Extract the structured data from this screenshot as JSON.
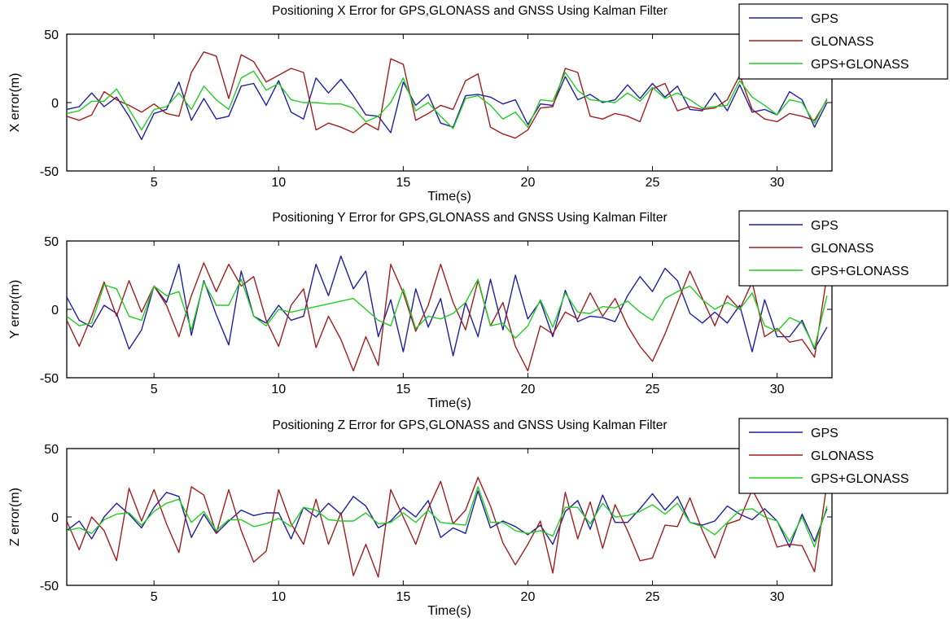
{
  "chart_data": [
    {
      "type": "line",
      "title": "Positioning X Error for GPS,GLONASS and GNSS Using Kalman Filter",
      "xlabel": "Time(s)",
      "ylabel": "X error(m)",
      "xlim": [
        1.5,
        32.2
      ],
      "ylim": [
        -50,
        50
      ],
      "xticks": [
        5,
        10,
        15,
        20,
        25,
        30
      ],
      "yticks": [
        -50,
        0,
        50
      ],
      "grid": false,
      "legend_position": "top-right",
      "x": [
        1.5,
        2,
        2.5,
        3,
        3.5,
        4,
        4.5,
        5,
        5.5,
        6,
        6.5,
        7,
        7.5,
        8,
        8.5,
        9,
        9.5,
        10,
        10.5,
        11,
        11.5,
        12,
        12.5,
        13,
        13.5,
        14,
        14.5,
        15,
        15.5,
        16,
        16.5,
        17,
        17.5,
        18,
        18.5,
        19,
        19.5,
        20,
        20.5,
        21,
        21.5,
        22,
        22.5,
        23,
        23.5,
        24,
        24.5,
        25,
        25.5,
        26,
        26.5,
        27,
        27.5,
        28,
        28.5,
        29,
        29.5,
        30,
        30.5,
        31,
        31.5,
        32
      ],
      "series": [
        {
          "name": "GPS",
          "color": "#1f1fa0",
          "values": [
            -5,
            -3,
            7,
            -3,
            4,
            -10,
            -27,
            -8,
            -5,
            15,
            -13,
            3,
            -12,
            -10,
            12,
            14,
            -2,
            16,
            -7,
            -12,
            18,
            7,
            17,
            5,
            -9,
            -10,
            -22,
            15,
            -2,
            6,
            -15,
            -18,
            5,
            6,
            4,
            -1,
            2,
            -16,
            -1,
            -2,
            19,
            2,
            6,
            0,
            2,
            13,
            3,
            14,
            4,
            12,
            -5,
            -6,
            7,
            -6,
            13,
            -7,
            -5,
            -9,
            8,
            2,
            -18,
            0
          ]
        },
        {
          "name": "GLONASS",
          "color": "#a01e1e",
          "values": [
            -10,
            -13,
            -9,
            8,
            2,
            -2,
            -7,
            -1,
            -8,
            -10,
            22,
            37,
            34,
            3,
            35,
            30,
            15,
            20,
            25,
            22,
            -20,
            -15,
            -18,
            -22,
            -15,
            -20,
            32,
            28,
            -13,
            -8,
            -2,
            -5,
            16,
            21,
            -18,
            -23,
            -26,
            -20,
            -4,
            -3,
            25,
            22,
            -10,
            -12,
            -8,
            -10,
            -14,
            10,
            14,
            -6,
            -3,
            -5,
            -4,
            2,
            20,
            -5,
            -12,
            -14,
            -8,
            -10,
            -13,
            2
          ]
        },
        {
          "name": "GPS+GLONASS",
          "color": "#22cc22",
          "values": [
            -8,
            -6,
            1,
            1,
            10,
            -5,
            -20,
            -5,
            -3,
            7,
            -5,
            12,
            2,
            -5,
            18,
            23,
            9,
            14,
            2,
            0,
            0,
            -1,
            -1,
            -4,
            -14,
            -10,
            0,
            18,
            -6,
            0,
            -10,
            -19,
            3,
            5,
            -2,
            -12,
            -7,
            -18,
            2,
            1,
            22,
            9,
            2,
            1,
            0,
            7,
            1,
            11,
            3,
            7,
            2,
            -4,
            -3,
            -2,
            16,
            4,
            -2,
            -9,
            2,
            0,
            -15,
            3
          ]
        }
      ]
    },
    {
      "type": "line",
      "title": "Positioning Y Error for GPS,GLONASS and GNSS Using Kalman Filter",
      "xlabel": "Time(s)",
      "ylabel": "Y error(m)",
      "xlim": [
        1.5,
        32.2
      ],
      "ylim": [
        -50,
        50
      ],
      "xticks": [
        5,
        10,
        15,
        20,
        25,
        30
      ],
      "yticks": [
        -50,
        0,
        50
      ],
      "grid": false,
      "legend_position": "top-right",
      "x": [
        1.5,
        2,
        2.5,
        3,
        3.5,
        4,
        4.5,
        5,
        5.5,
        6,
        6.5,
        7,
        7.5,
        8,
        8.5,
        9,
        9.5,
        10,
        10.5,
        11,
        11.5,
        12,
        12.5,
        13,
        13.5,
        14,
        14.5,
        15,
        15.5,
        16,
        16.5,
        17,
        17.5,
        18,
        18.5,
        19,
        19.5,
        20,
        20.5,
        21,
        21.5,
        22,
        22.5,
        23,
        23.5,
        24,
        24.5,
        25,
        25.5,
        26,
        26.5,
        27,
        27.5,
        28,
        28.5,
        29,
        29.5,
        30,
        30.5,
        31,
        31.5,
        32
      ],
      "series": [
        {
          "name": "GPS",
          "color": "#1f1fa0",
          "values": [
            9,
            -8,
            -13,
            3,
            -3,
            -29,
            -15,
            17,
            5,
            33,
            -19,
            21,
            -4,
            -26,
            28,
            -5,
            -10,
            3,
            -8,
            -5,
            33,
            10,
            39,
            15,
            28,
            -20,
            7,
            -31,
            15,
            -13,
            8,
            -34,
            5,
            -20,
            22,
            -15,
            25,
            -7,
            6,
            -20,
            14,
            -9,
            -5,
            -6,
            -9,
            10,
            24,
            13,
            30,
            21,
            -3,
            -10,
            -2,
            -10,
            3,
            -31,
            7,
            -20,
            -20,
            -8,
            -29,
            -13
          ]
        },
        {
          "name": "GLONASS",
          "color": "#a01e1e",
          "values": [
            -8,
            -27,
            -5,
            20,
            -5,
            21,
            -2,
            17,
            3,
            -20,
            10,
            34,
            13,
            33,
            17,
            24,
            -8,
            -27,
            3,
            15,
            -28,
            -5,
            -22,
            -45,
            -20,
            -41,
            33,
            12,
            -16,
            3,
            33,
            5,
            -15,
            21,
            -12,
            5,
            -27,
            -45,
            -12,
            -18,
            -2,
            -7,
            12,
            -5,
            8,
            -12,
            -27,
            -38,
            -18,
            5,
            28,
            8,
            -12,
            10,
            0,
            20,
            -20,
            -14,
            -24,
            -22,
            -35,
            25
          ]
        },
        {
          "name": "GPS+GLONASS",
          "color": "#22cc22",
          "values": [
            -5,
            -12,
            -10,
            18,
            15,
            -5,
            -8,
            17,
            10,
            13,
            -15,
            20,
            3,
            3,
            22,
            -5,
            -12,
            0,
            -2,
            0,
            2,
            4,
            6,
            8,
            0,
            -8,
            -12,
            15,
            -14,
            -5,
            -7,
            -3,
            5,
            22,
            -12,
            -10,
            -21,
            -12,
            7,
            -13,
            12,
            -2,
            -3,
            2,
            1,
            6,
            -2,
            -8,
            8,
            13,
            17,
            7,
            0,
            5,
            0,
            12,
            -12,
            -16,
            -6,
            -10,
            -28,
            10
          ]
        }
      ]
    },
    {
      "type": "line",
      "title": "Positioning Z Error for GPS,GLONASS and GNSS Using Kalman Filter",
      "xlabel": "Time(s)",
      "ylabel": "Z error(m)",
      "xlim": [
        1.5,
        32.2
      ],
      "ylim": [
        -50,
        50
      ],
      "xticks": [
        5,
        10,
        15,
        20,
        25,
        30
      ],
      "yticks": [
        -50,
        0,
        50
      ],
      "grid": false,
      "legend_position": "top-right",
      "x": [
        1.5,
        2,
        2.5,
        3,
        3.5,
        4,
        4.5,
        5,
        5.5,
        6,
        6.5,
        7,
        7.5,
        8,
        8.5,
        9,
        9.5,
        10,
        10.5,
        11,
        11.5,
        12,
        12.5,
        13,
        13.5,
        14,
        14.5,
        15,
        15.5,
        16,
        16.5,
        17,
        17.5,
        18,
        18.5,
        19,
        19.5,
        20,
        20.5,
        21,
        21.5,
        22,
        22.5,
        23,
        23.5,
        24,
        24.5,
        25,
        25.5,
        26,
        26.5,
        27,
        27.5,
        28,
        28.5,
        29,
        29.5,
        30,
        30.5,
        31,
        31.5,
        32
      ],
      "series": [
        {
          "name": "GPS",
          "color": "#1f1fa0",
          "values": [
            -10,
            -3,
            -16,
            0,
            10,
            2,
            -8,
            7,
            18,
            15,
            -15,
            2,
            -12,
            -3,
            5,
            1,
            3,
            3,
            -16,
            7,
            0,
            10,
            2,
            15,
            8,
            -8,
            -3,
            7,
            0,
            12,
            -15,
            -8,
            -12,
            19,
            -8,
            -3,
            -7,
            -13,
            -6,
            -20,
            4,
            12,
            -9,
            16,
            -4,
            -4,
            6,
            17,
            5,
            15,
            -4,
            -6,
            -3,
            8,
            2,
            -2,
            6,
            -3,
            -22,
            2,
            -18,
            6
          ]
        },
        {
          "name": "GLONASS",
          "color": "#a01e1e",
          "values": [
            -3,
            -24,
            0,
            -10,
            -32,
            21,
            -3,
            20,
            -5,
            -26,
            22,
            16,
            -12,
            20,
            -10,
            -33,
            -25,
            20,
            -5,
            -20,
            13,
            -20,
            3,
            -43,
            -20,
            -44,
            20,
            0,
            -20,
            6,
            26,
            -5,
            5,
            29,
            8,
            -19,
            -35,
            -20,
            -3,
            -41,
            18,
            -16,
            11,
            -23,
            9,
            -10,
            -32,
            -30,
            -6,
            -7,
            14,
            -10,
            -30,
            -5,
            -2,
            20,
            3,
            -22,
            -20,
            -21,
            -40,
            25
          ]
        },
        {
          "name": "GPS+GLONASS",
          "color": "#22cc22",
          "values": [
            -10,
            -8,
            -12,
            -2,
            2,
            3,
            -6,
            4,
            10,
            13,
            -4,
            4,
            -10,
            -2,
            -2,
            -7,
            -5,
            -1,
            -7,
            7,
            5,
            -2,
            -3,
            -3,
            3,
            -5,
            -4,
            3,
            -4,
            5,
            -4,
            -5,
            -6,
            22,
            -4,
            -4,
            -10,
            -12,
            -10,
            -14,
            7,
            7,
            -5,
            10,
            0,
            1,
            4,
            9,
            2,
            10,
            -4,
            -7,
            -13,
            -4,
            5,
            6,
            0,
            -3,
            -18,
            0,
            -22,
            8
          ]
        }
      ]
    }
  ]
}
